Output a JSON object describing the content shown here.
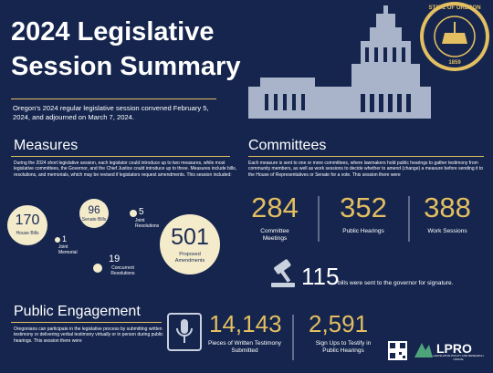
{
  "header": {
    "title_line1": "2024 Legislative",
    "title_line2": "Session Summary",
    "intro": "Oregon's 2024 regular legislative session convened February 5, 2024, and adjourned on March 7, 2024.",
    "seal_text": "STATE OF OREGON",
    "seal_year": "1859"
  },
  "measures": {
    "heading": "Measures",
    "text": "During the 2024 short legislative session, each legislator could introduce up to two measures, while most legislative committees, the Governor, and the Chief Justice could introduce up to three. Measures include bills, resolutions, and memorials, which may be revised if legislators request amendments. This session included:",
    "items": [
      {
        "number": "170",
        "label": "House Bills"
      },
      {
        "number": "96",
        "label": "Senate Bills"
      },
      {
        "number": "5",
        "label": "Joint Resolutions"
      },
      {
        "number": "1",
        "label": "Joint Memorial"
      },
      {
        "number": "19",
        "label": "Concurrent Resolutions"
      },
      {
        "number": "501",
        "label": "Proposed Amendments"
      }
    ]
  },
  "committees": {
    "heading": "Committees",
    "text": "Each measure is sent to one or more committees, where lawmakers hold public hearings to gather testimony from community members, as well as work sessions to decide whether to amend (change) a measure before sending it to the House of Representatives or Senate for a vote. This session there were",
    "items": [
      {
        "number": "284",
        "label": "Committee Meetings"
      },
      {
        "number": "352",
        "label": "Public Hearings"
      },
      {
        "number": "388",
        "label": "Work Sessions"
      }
    ],
    "governor_number": "115",
    "governor_text": "bills were sent to the governor for signature."
  },
  "public_engagement": {
    "heading": "Public Engagement",
    "text": "Oregonians can participate in the legislative process by submitting written testimony or delivering verbal testimony virtually or in person during public hearings. This session there were",
    "items": [
      {
        "number": "14,143",
        "label": "Pieces of Written Testimony Submitted"
      },
      {
        "number": "2,591",
        "label": "Sign Ups to Testify in Public Hearings"
      }
    ]
  },
  "footer": {
    "logo": "LPRO",
    "logo_subtitle": "LEGISLATIVE POLICY AND RESEARCH OFFICE"
  }
}
